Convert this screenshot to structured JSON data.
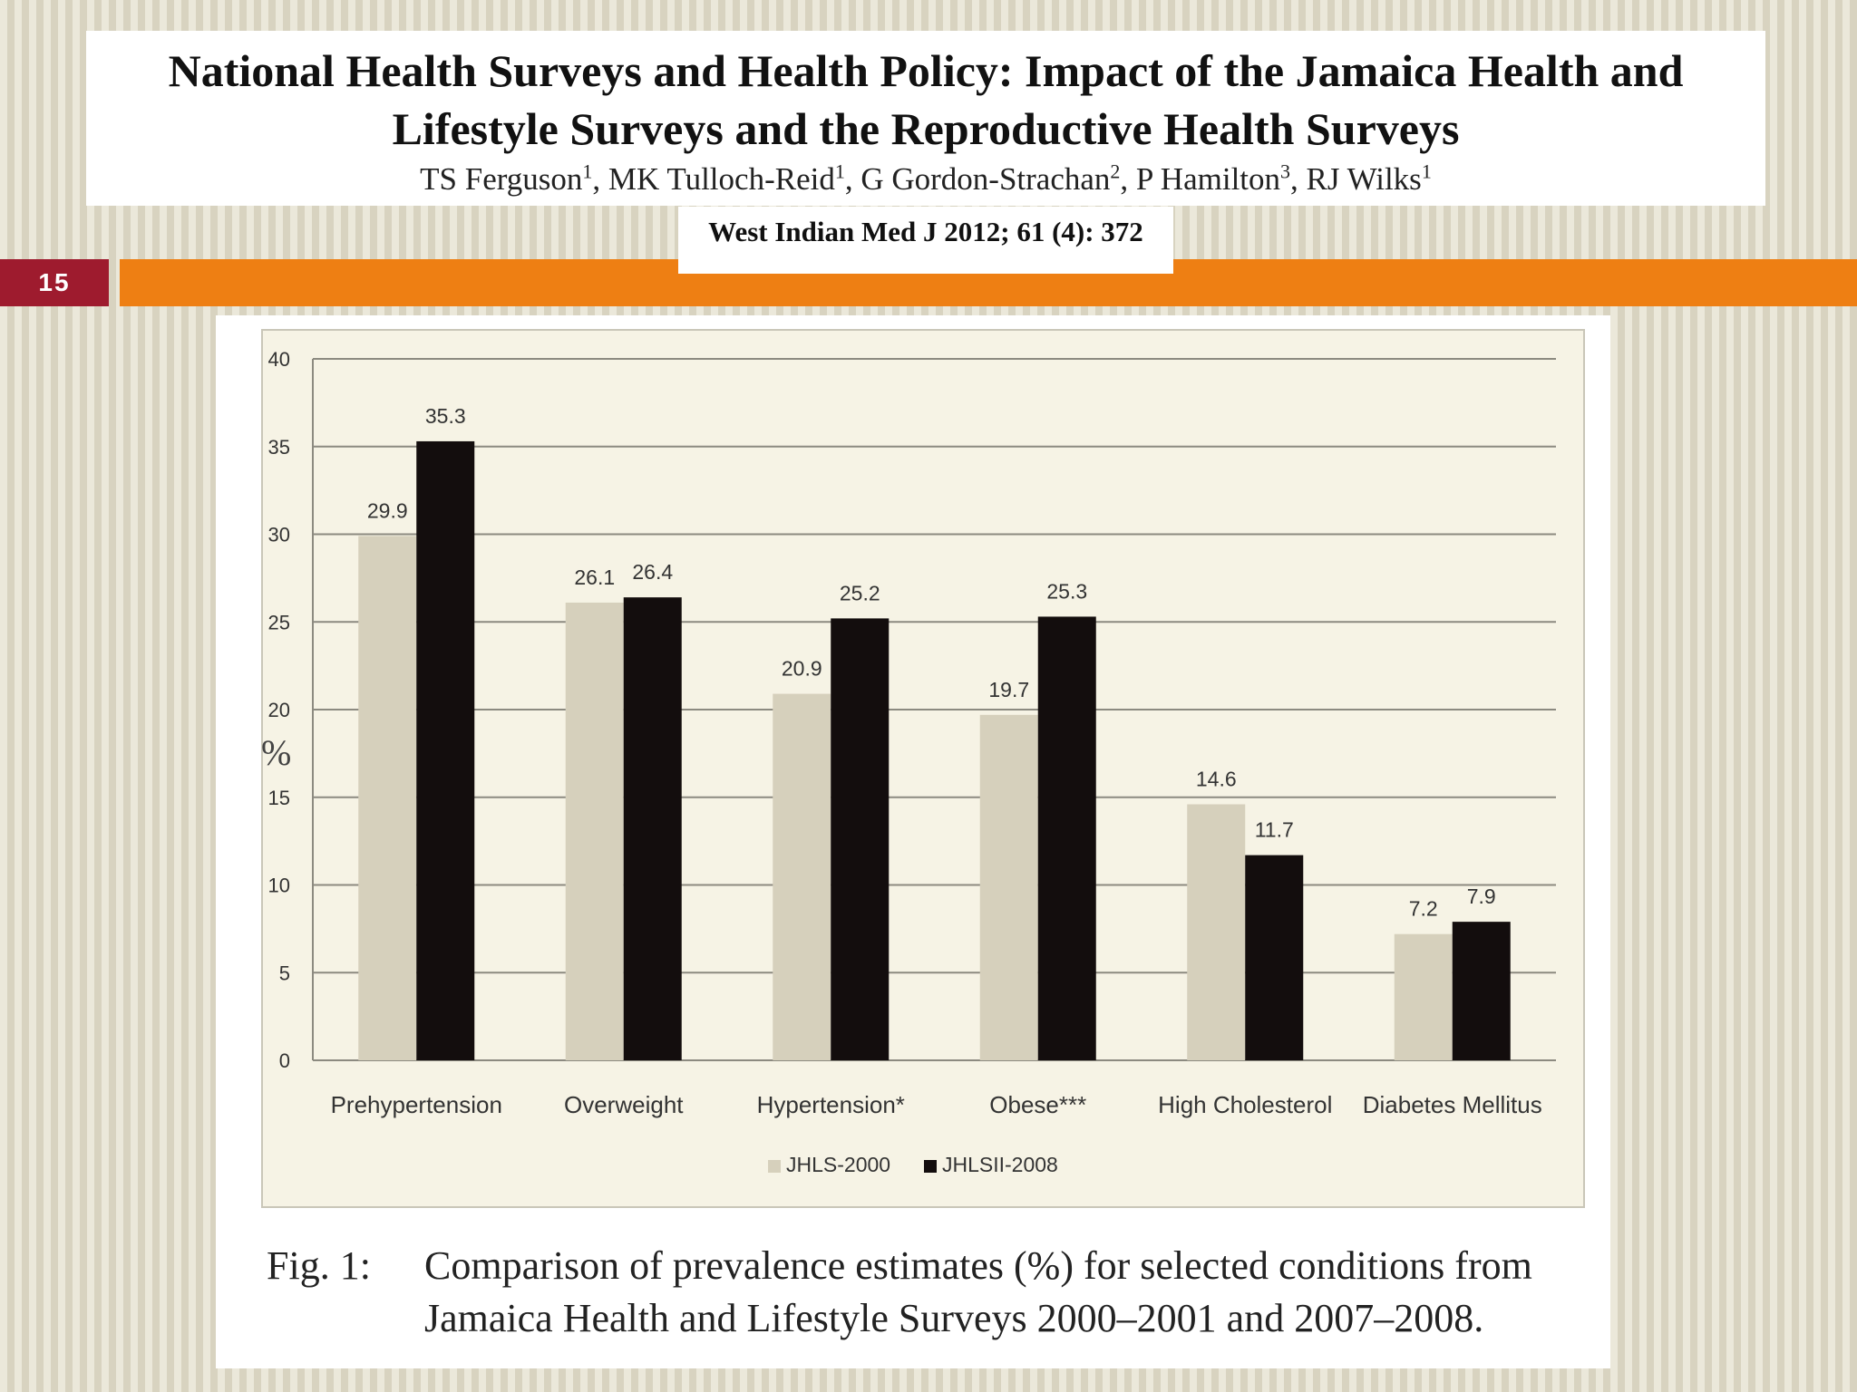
{
  "slide": {
    "number": "15",
    "title_line1": "National Health Surveys and Health Policy: Impact of the Jamaica Health and",
    "title_line2": "Lifestyle Surveys and the Reproductive Health Surveys",
    "authors": [
      {
        "name": "TS Ferguson",
        "sup": "1",
        "sep": ", "
      },
      {
        "name": "MK Tulloch-Reid",
        "sup": "1",
        "sep": ", "
      },
      {
        "name": "G Gordon-Strachan",
        "sup": "2",
        "sep": ", "
      },
      {
        "name": "P Hamilton",
        "sup": "3",
        "sep": ", "
      },
      {
        "name": "RJ Wilks",
        "sup": "1",
        "sep": ""
      }
    ],
    "citation": "West Indian Med J 2012; 61 (4): 372",
    "colors": {
      "badge": "#9e1b2e",
      "bar": "#ee7f13"
    }
  },
  "caption": {
    "label": "Fig. 1:",
    "text": "Comparison of prevalence estimates (%) for selected conditions from Jamaica Health and Lifestyle Surveys 2000–2001 and 2007–2008."
  },
  "chart_data": {
    "type": "bar",
    "title": "",
    "xlabel": "",
    "ylabel": "%",
    "ylim": [
      0,
      40
    ],
    "yticks": [
      0,
      5,
      10,
      15,
      20,
      25,
      30,
      35,
      40
    ],
    "ytick_labels": [
      "0",
      "5",
      "10",
      "15",
      "20",
      "25",
      "30",
      "35",
      "40"
    ],
    "grid": true,
    "legend_position": "bottom-center",
    "categories": [
      "Prehypertension",
      "Overweight",
      "Hypertension*",
      "Obese***",
      "High Cholesterol",
      "Diabetes Mellitus"
    ],
    "series": [
      {
        "name": "JHLS-2000",
        "color": "#d6d0bc",
        "values": [
          29.9,
          26.1,
          20.9,
          19.7,
          14.6,
          7.2
        ],
        "labels": [
          "29.9",
          "26.1",
          "20.9",
          "19.7",
          "14.6",
          "7.2"
        ]
      },
      {
        "name": "JHLSII-2008",
        "color": "#130d0d",
        "values": [
          35.3,
          26.4,
          25.2,
          25.3,
          11.7,
          7.9
        ],
        "labels": [
          "35.3",
          "26.4",
          "25.2",
          "25.3",
          "11.7",
          "7.9"
        ]
      }
    ]
  }
}
